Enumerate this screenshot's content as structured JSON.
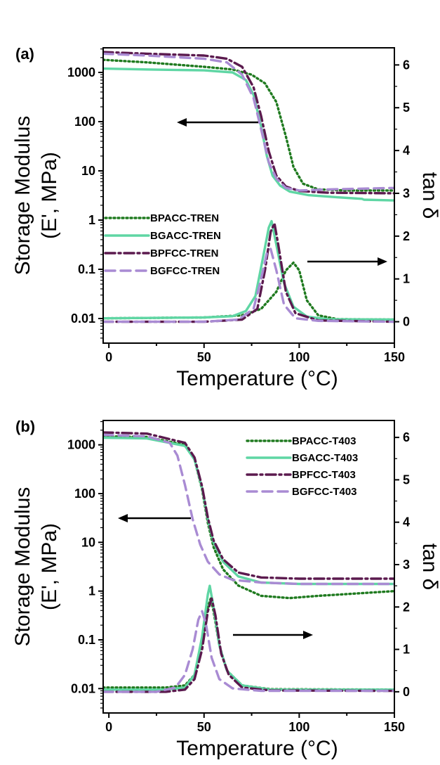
{
  "colors": {
    "BPACC": "#1f7a1f",
    "BGACC": "#5fd6a4",
    "BPFCC": "#5b1a4e",
    "BGFCC": "#a98bd3"
  },
  "chart_data": [
    {
      "type": "line",
      "panel_label": "(a)",
      "xlabel": "Temperature (°C)",
      "ylabel_left_line1": "Storage Modulus",
      "ylabel_left_line2": "(E', MPa)",
      "ylabel_right": "tan δ",
      "xlim": [
        -3,
        150
      ],
      "x_ticks": [
        0,
        50,
        100,
        150
      ],
      "y_left_scale": "log",
      "y_left_ticks": [
        "0.01",
        "0.1",
        "1",
        "10",
        "100",
        "1000"
      ],
      "y_right_lim": [
        -0.5,
        6.4
      ],
      "y_right_ticks": [
        0,
        1,
        2,
        3,
        4,
        5,
        6
      ],
      "legend_position": "bottom-left",
      "arrows": [
        "storage modulus curves → left axis",
        "tan δ curves → right axis"
      ],
      "series": [
        {
          "name": "BPACC-TREN",
          "color_key": "BPACC",
          "dash": "dotted",
          "modulus_x": [
            -3,
            20,
            50,
            65,
            75,
            82,
            88,
            93,
            97,
            102,
            110,
            125,
            150
          ],
          "modulus_y": [
            1800,
            1600,
            1300,
            1150,
            900,
            600,
            250,
            50,
            12,
            5.5,
            4.2,
            4.0,
            4.0
          ],
          "tan_x": [
            -3,
            50,
            70,
            80,
            88,
            93,
            97,
            100,
            104,
            110,
            120,
            150
          ],
          "tan_y": [
            0.08,
            0.1,
            0.15,
            0.3,
            0.7,
            1.2,
            1.38,
            1.2,
            0.5,
            0.15,
            0.06,
            0.05
          ]
        },
        {
          "name": "BGACC-TREN",
          "color_key": "BGACC",
          "dash": "solid",
          "modulus_x": [
            -3,
            20,
            50,
            65,
            72,
            76,
            80,
            83,
            86,
            90,
            95,
            105,
            120,
            133,
            134,
            150
          ],
          "modulus_y": [
            1200,
            1150,
            1100,
            1000,
            700,
            350,
            80,
            20,
            8,
            5,
            3.8,
            3.2,
            2.9,
            2.7,
            2.6,
            2.5
          ],
          "tan_x": [
            -3,
            50,
            65,
            72,
            77,
            81,
            84,
            85.5,
            88,
            92,
            97,
            104,
            115,
            150
          ],
          "tan_y": [
            0.08,
            0.1,
            0.13,
            0.25,
            0.6,
            1.5,
            2.2,
            2.35,
            1.8,
            0.9,
            0.35,
            0.12,
            0.06,
            0.05
          ]
        },
        {
          "name": "BPFCC-TREN",
          "color_key": "BPFCC",
          "dash": "dash-dot",
          "modulus_x": [
            -3,
            20,
            50,
            62,
            70,
            76,
            80,
            84,
            88,
            93,
            100,
            115,
            150
          ],
          "modulus_y": [
            2600,
            2400,
            2200,
            1900,
            1300,
            500,
            130,
            25,
            8,
            4.8,
            3.9,
            3.6,
            3.5
          ],
          "tan_x": [
            -3,
            50,
            70,
            78,
            82,
            85,
            87,
            89,
            93,
            98,
            110,
            150
          ],
          "tan_y": [
            0.0,
            0.0,
            0.05,
            0.3,
            1.2,
            2.1,
            2.3,
            1.8,
            0.7,
            0.2,
            0.03,
            0.0
          ]
        },
        {
          "name": "BGFCC-TREN",
          "color_key": "BGFCC",
          "dash": "dashed",
          "modulus_x": [
            -3,
            20,
            50,
            62,
            70,
            76,
            80,
            84,
            88,
            93,
            100,
            115,
            150
          ],
          "modulus_y": [
            2400,
            2200,
            1900,
            1600,
            900,
            300,
            70,
            15,
            7,
            4.5,
            4.0,
            4.2,
            4.5
          ],
          "tan_x": [
            -3,
            50,
            68,
            76,
            80,
            83,
            85,
            88,
            92,
            98,
            110,
            150
          ],
          "tan_y": [
            0.0,
            0.0,
            0.05,
            0.3,
            1.0,
            1.6,
            1.7,
            1.2,
            0.4,
            0.08,
            0.02,
            0.0
          ]
        }
      ]
    },
    {
      "type": "line",
      "panel_label": "(b)",
      "xlabel": "Temperature (°C)",
      "ylabel_left_line1": "Storage Modulus",
      "ylabel_left_line2": "(E', MPa)",
      "ylabel_right": "tan δ",
      "xlim": [
        -3,
        150
      ],
      "x_ticks": [
        0,
        50,
        100,
        150
      ],
      "y_left_scale": "log",
      "y_left_ticks": [
        "0.01",
        "0.1",
        "1",
        "10",
        "100",
        "1000"
      ],
      "y_right_lim": [
        -0.5,
        6.4
      ],
      "y_right_ticks": [
        0,
        1,
        2,
        3,
        4,
        5,
        6
      ],
      "legend_position": "top-right",
      "arrows": [
        "storage modulus curves → left axis",
        "tan δ curves → right axis"
      ],
      "series": [
        {
          "name": "BPACC-T403",
          "color_key": "BPACC",
          "dash": "dotted",
          "modulus_x": [
            -3,
            20,
            40,
            45,
            49,
            52,
            55,
            60,
            68,
            80,
            95,
            110,
            150
          ],
          "modulus_y": [
            1500,
            1450,
            1000,
            500,
            120,
            25,
            8,
            2.8,
            1.3,
            0.8,
            0.72,
            0.8,
            1.0
          ],
          "tan_x": [
            -3,
            30,
            40,
            45,
            49,
            52,
            53.5,
            55,
            58,
            62,
            70,
            85,
            150
          ],
          "tan_y": [
            0.1,
            0.1,
            0.15,
            0.4,
            1.2,
            2.0,
            2.2,
            1.9,
            1.1,
            0.5,
            0.15,
            0.06,
            0.05
          ]
        },
        {
          "name": "BGACC-T403",
          "color_key": "BGACC",
          "dash": "solid",
          "modulus_x": [
            -3,
            20,
            40,
            45,
            49,
            52,
            55,
            60,
            68,
            80,
            100,
            150
          ],
          "modulus_y": [
            1400,
            1350,
            950,
            500,
            130,
            30,
            10,
            4,
            2,
            1.5,
            1.4,
            1.4
          ],
          "tan_x": [
            -3,
            30,
            40,
            45,
            49,
            52,
            53,
            55,
            58,
            62,
            70,
            85,
            150
          ],
          "tan_y": [
            0.05,
            0.05,
            0.1,
            0.4,
            1.3,
            2.3,
            2.5,
            2.0,
            1.1,
            0.5,
            0.15,
            0.05,
            0.05
          ]
        },
        {
          "name": "BPFCC-T403",
          "color_key": "BPFCC",
          "dash": "dash-dot",
          "modulus_x": [
            -3,
            20,
            40,
            45,
            49,
            52,
            55,
            60,
            68,
            80,
            100,
            150
          ],
          "modulus_y": [
            1800,
            1700,
            1100,
            550,
            140,
            32,
            11,
            4.5,
            2.4,
            1.9,
            1.8,
            1.8
          ],
          "tan_x": [
            -3,
            30,
            40,
            45,
            49,
            52,
            54,
            56,
            59,
            63,
            70,
            85,
            150
          ],
          "tan_y": [
            0.0,
            0.0,
            0.05,
            0.3,
            1.0,
            1.9,
            2.2,
            1.8,
            0.9,
            0.4,
            0.1,
            0.03,
            0.02
          ]
        },
        {
          "name": "BGFCC-T403",
          "color_key": "BGFCC",
          "dash": "dashed",
          "modulus_x": [
            -3,
            20,
            32,
            36,
            40,
            44,
            48,
            52,
            58,
            65,
            80,
            100,
            150
          ],
          "modulus_y": [
            1600,
            1500,
            1100,
            600,
            150,
            30,
            9,
            4,
            2.2,
            1.7,
            1.5,
            1.4,
            1.4
          ],
          "tan_x": [
            -3,
            25,
            35,
            40,
            44,
            47,
            49,
            51,
            54,
            58,
            65,
            80,
            150
          ],
          "tan_y": [
            0.0,
            0.0,
            0.1,
            0.4,
            1.0,
            1.7,
            1.9,
            1.6,
            0.8,
            0.3,
            0.08,
            0.02,
            0.02
          ]
        }
      ]
    }
  ]
}
